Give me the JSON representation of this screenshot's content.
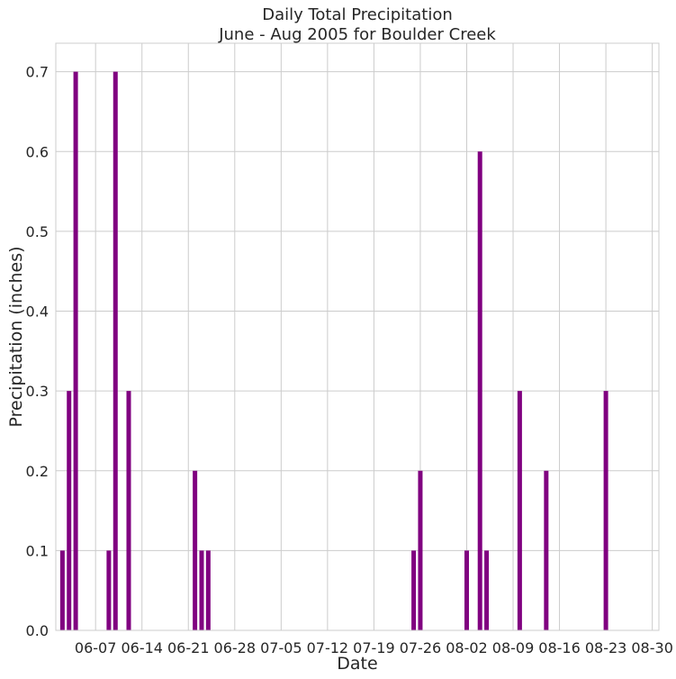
{
  "chart_data": {
    "type": "bar",
    "title": [
      "Daily Total Precipitation",
      "June - Aug 2005 for Boulder Creek"
    ],
    "xlabel": "Date",
    "ylabel": "Precipitation (inches)",
    "ylim": [
      0,
      0.7357
    ],
    "xlim": [
      "2005-06-01",
      "2005-08-31"
    ],
    "grid": true,
    "x_ticks": [
      {
        "date": "2005-06-07",
        "label": "06-07"
      },
      {
        "date": "2005-06-14",
        "label": "06-14"
      },
      {
        "date": "2005-06-21",
        "label": "06-21"
      },
      {
        "date": "2005-06-28",
        "label": "06-28"
      },
      {
        "date": "2005-07-05",
        "label": "07-05"
      },
      {
        "date": "2005-07-12",
        "label": "07-12"
      },
      {
        "date": "2005-07-19",
        "label": "07-19"
      },
      {
        "date": "2005-07-26",
        "label": "07-26"
      },
      {
        "date": "2005-08-02",
        "label": "08-02"
      },
      {
        "date": "2005-08-09",
        "label": "08-09"
      },
      {
        "date": "2005-08-16",
        "label": "08-16"
      },
      {
        "date": "2005-08-23",
        "label": "08-23"
      },
      {
        "date": "2005-08-30",
        "label": "08-30"
      }
    ],
    "y_ticks": [
      {
        "value": 0.0,
        "label": "0.0"
      },
      {
        "value": 0.1,
        "label": "0.1"
      },
      {
        "value": 0.2,
        "label": "0.2"
      },
      {
        "value": 0.3,
        "label": "0.3"
      },
      {
        "value": 0.4,
        "label": "0.4"
      },
      {
        "value": 0.5,
        "label": "0.5"
      },
      {
        "value": 0.6,
        "label": "0.6"
      },
      {
        "value": 0.7,
        "label": "0.7"
      }
    ],
    "series": [
      {
        "color": "#800080",
        "points": [
          {
            "date": "2005-06-02",
            "value": 0.1
          },
          {
            "date": "2005-06-03",
            "value": 0.3
          },
          {
            "date": "2005-06-04",
            "value": 0.7
          },
          {
            "date": "2005-06-09",
            "value": 0.1
          },
          {
            "date": "2005-06-10",
            "value": 0.7
          },
          {
            "date": "2005-06-12",
            "value": 0.3
          },
          {
            "date": "2005-06-22",
            "value": 0.2
          },
          {
            "date": "2005-06-23",
            "value": 0.1
          },
          {
            "date": "2005-06-24",
            "value": 0.1
          },
          {
            "date": "2005-07-25",
            "value": 0.1
          },
          {
            "date": "2005-07-26",
            "value": 0.2
          },
          {
            "date": "2005-08-02",
            "value": 0.1
          },
          {
            "date": "2005-08-04",
            "value": 0.6
          },
          {
            "date": "2005-08-05",
            "value": 0.1
          },
          {
            "date": "2005-08-10",
            "value": 0.3
          },
          {
            "date": "2005-08-14",
            "value": 0.2
          },
          {
            "date": "2005-08-23",
            "value": 0.3
          }
        ]
      }
    ]
  }
}
